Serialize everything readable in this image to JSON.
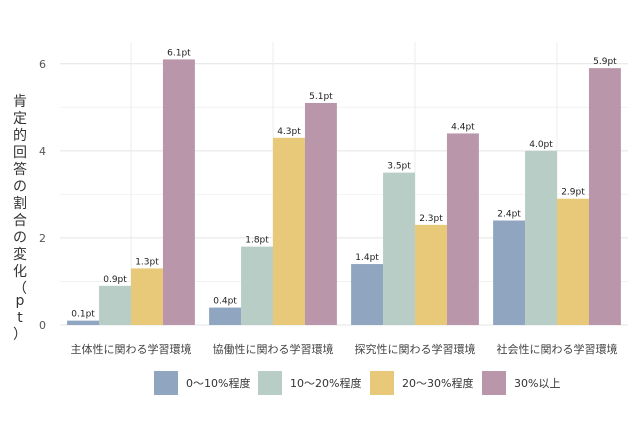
{
  "chart_data": {
    "type": "bar",
    "title": "",
    "xlabel": "",
    "ylabel": "肯定的回答の割合の変化（pt）",
    "ylim": [
      0,
      6.5
    ],
    "yticks": [
      0,
      2,
      4,
      6
    ],
    "grid": true,
    "legend_position": "bottom",
    "categories": [
      "主体性に関わる学習環境",
      "協働性に関わる学習環境",
      "探究性に関わる学習環境",
      "社会性に関わる学習環境"
    ],
    "series": [
      {
        "name": "0〜10%程度",
        "color": "#8fa5c0",
        "values": [
          0.1,
          0.4,
          1.4,
          2.4
        ],
        "labels": [
          "0.1pt",
          "0.4pt",
          "1.4pt",
          "2.4pt"
        ]
      },
      {
        "name": "10〜20%程度",
        "color": "#b8cdc5",
        "values": [
          0.9,
          1.8,
          3.5,
          4.0
        ],
        "labels": [
          "0.9pt",
          "1.8pt",
          "3.5pt",
          "4.0pt"
        ]
      },
      {
        "name": "20〜30%程度",
        "color": "#e8c97a",
        "values": [
          1.3,
          4.3,
          2.3,
          2.9
        ],
        "labels": [
          "1.3pt",
          "4.3pt",
          "2.3pt",
          "2.9pt"
        ]
      },
      {
        "name": "30%以上",
        "color": "#b996aa",
        "values": [
          6.1,
          5.1,
          4.4,
          5.9
        ],
        "labels": [
          "6.1pt",
          "5.1pt",
          "4.4pt",
          "5.9pt"
        ]
      }
    ]
  }
}
